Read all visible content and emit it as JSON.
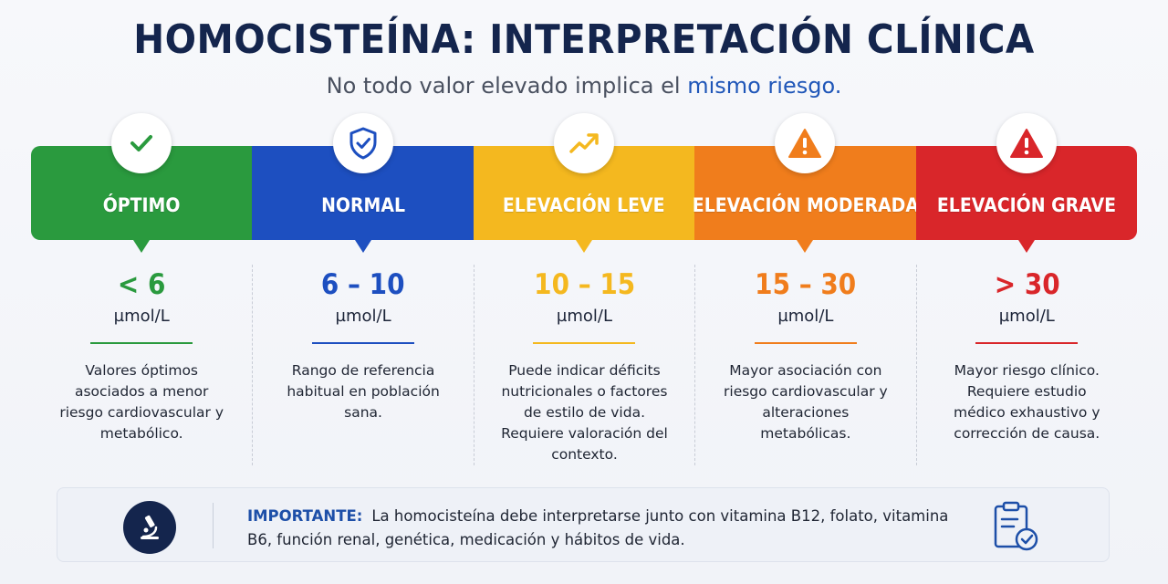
{
  "header": {
    "title": "HOMOCISTEÍNA: INTERPRETACIÓN CLÍNICA",
    "subtitle_prefix": "No todo valor elevado implica el",
    "subtitle_highlight": "mismo riesgo."
  },
  "categories": [
    {
      "label": "ÓPTIMO",
      "range": "< 6",
      "unit": "µmol/L",
      "description": "Valores óptimos asociados a menor riesgo cardiovascular y metabólico.",
      "color": "#2a9a3e",
      "icon": "check-icon"
    },
    {
      "label": "NORMAL",
      "range": "6 – 10",
      "unit": "µmol/L",
      "description": "Rango de referencia habitual en población sana.",
      "color": "#1d4fc0",
      "icon": "shield-check-icon"
    },
    {
      "label": "ELEVACIÓN LEVE",
      "range": "10 – 15",
      "unit": "µmol/L",
      "description": "Puede indicar déficits nutricionales o factores de estilo de vida. Requiere valoración del contexto.",
      "color": "#f4b81f",
      "icon": "trend-up-icon"
    },
    {
      "label": "ELEVACIÓN MODERADA",
      "range": "15 – 30",
      "unit": "µmol/L",
      "description": "Mayor asociación con riesgo cardiovascular y alteraciones metabólicas.",
      "color": "#f07d1c",
      "icon": "warning-icon"
    },
    {
      "label": "ELEVACIÓN GRAVE",
      "range": "> 30",
      "unit": "µmol/L",
      "description": "Mayor riesgo clínico. Requiere estudio médico exhaustivo y corrección de causa.",
      "color": "#d9262a",
      "icon": "alert-icon"
    }
  ],
  "note": {
    "label": "IMPORTANTE:",
    "text": "La homocisteína debe interpretarse junto con vitamina B12, folato, vitamina B6, función renal, genética, medicación y hábitos de vida.",
    "left_icon": "microscope-icon",
    "right_icon": "clipboard-check-icon"
  }
}
